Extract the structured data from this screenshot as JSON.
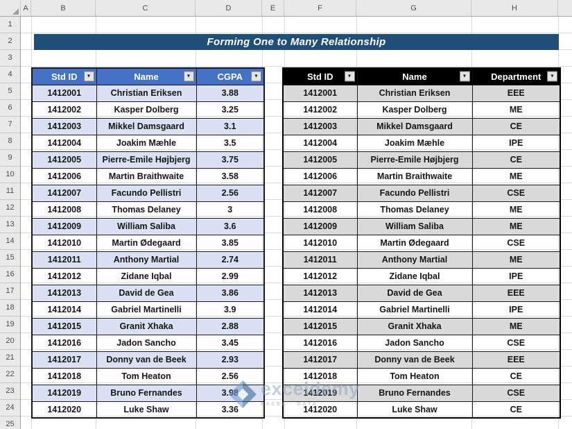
{
  "title_banner": {
    "text": "Forming One to Many Relationship",
    "bg_color": "#1F4E79",
    "text_color": "#FFFFFF"
  },
  "sheet": {
    "column_headers": [
      "A",
      "B",
      "C",
      "D",
      "E",
      "F",
      "G",
      "H"
    ],
    "row_numbers": [
      "1",
      "2",
      "3",
      "4",
      "5",
      "6",
      "7",
      "8",
      "9",
      "10",
      "11",
      "12",
      "13",
      "14",
      "15",
      "16",
      "17",
      "18",
      "19",
      "20",
      "21",
      "22",
      "23",
      "24",
      "25"
    ],
    "gridline_color": "#D9D9D9"
  },
  "left_table": {
    "headers": [
      "Std ID",
      "Name",
      "CGPA"
    ],
    "header_bg": "#4472C4",
    "alt_row_bg": "#D9E1F2",
    "rows": [
      [
        "1412001",
        "Christian Eriksen",
        "3.88"
      ],
      [
        "1412002",
        "Kasper Dolberg",
        "3.25"
      ],
      [
        "1412003",
        "Mikkel Damsgaard",
        "3.1"
      ],
      [
        "1412004",
        "Joakim Mæhle",
        "3.5"
      ],
      [
        "1412005",
        "Pierre-Emile Højbjerg",
        "3.75"
      ],
      [
        "1412006",
        "Martin Braithwaite",
        "3.58"
      ],
      [
        "1412007",
        "Facundo Pellistri",
        "2.56"
      ],
      [
        "1412008",
        "Thomas Delaney",
        "3"
      ],
      [
        "1412009",
        "William Saliba",
        "3.6"
      ],
      [
        "1412010",
        "Martin Ødegaard",
        "3.85"
      ],
      [
        "1412011",
        "Anthony Martial",
        "2.74"
      ],
      [
        "1412012",
        "Zidane Iqbal",
        "2.99"
      ],
      [
        "1412013",
        "David de Gea",
        "3.86"
      ],
      [
        "1412014",
        "Gabriel Martinelli",
        "3.9"
      ],
      [
        "1412015",
        "Granit Xhaka",
        "2.88"
      ],
      [
        "1412016",
        "Jadon Sancho",
        "3.45"
      ],
      [
        "1412017",
        "Donny van de Beek",
        "2.93"
      ],
      [
        "1412018",
        "Tom Heaton",
        "2.56"
      ],
      [
        "1412019",
        "Bruno Fernandes",
        "3.98"
      ],
      [
        "1412020",
        "Luke Shaw",
        "3.36"
      ]
    ]
  },
  "right_table": {
    "headers": [
      "Std ID",
      "Name",
      "Department"
    ],
    "header_bg": "#000000",
    "alt_row_bg": "#D9D9D9",
    "rows": [
      [
        "1412001",
        "Christian Eriksen",
        "EEE"
      ],
      [
        "1412002",
        "Kasper Dolberg",
        "ME"
      ],
      [
        "1412003",
        "Mikkel Damsgaard",
        "CE"
      ],
      [
        "1412004",
        "Joakim Mæhle",
        "IPE"
      ],
      [
        "1412005",
        "Pierre-Emile Højbjerg",
        "CE"
      ],
      [
        "1412006",
        "Martin Braithwaite",
        "ME"
      ],
      [
        "1412007",
        "Facundo Pellistri",
        "CSE"
      ],
      [
        "1412008",
        "Thomas Delaney",
        "ME"
      ],
      [
        "1412009",
        "William Saliba",
        "ME"
      ],
      [
        "1412010",
        "Martin Ødegaard",
        "CSE"
      ],
      [
        "1412011",
        "Anthony Martial",
        "ME"
      ],
      [
        "1412012",
        "Zidane Iqbal",
        "IPE"
      ],
      [
        "1412013",
        "David de Gea",
        "EEE"
      ],
      [
        "1412014",
        "Gabriel Martinelli",
        "IPE"
      ],
      [
        "1412015",
        "Granit Xhaka",
        "ME"
      ],
      [
        "1412016",
        "Jadon Sancho",
        "CSE"
      ],
      [
        "1412017",
        "Donny van de Beek",
        "EEE"
      ],
      [
        "1412018",
        "Tom Heaton",
        "CE"
      ],
      [
        "1412019",
        "Bruno Fernandes",
        "CSE"
      ],
      [
        "1412020",
        "Luke Shaw",
        "CE"
      ]
    ]
  },
  "watermark": {
    "text": "exceldemy",
    "subtext": "EXCEL · DATA ·"
  }
}
